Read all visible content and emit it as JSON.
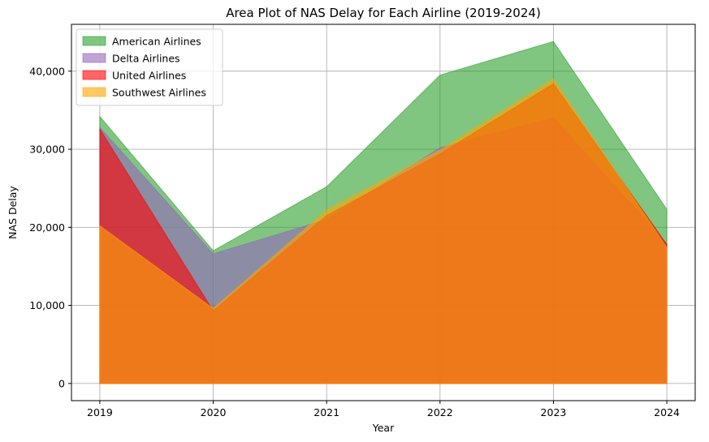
{
  "chart_data": {
    "type": "area",
    "title": "Area Plot of NAS Delay for Each Airline (2019-2024)",
    "xlabel": "Year",
    "ylabel": "NAS Delay",
    "x": [
      2019,
      2020,
      2021,
      2022,
      2023,
      2024
    ],
    "xlim": [
      2018.75,
      2024.25
    ],
    "ylim": [
      -2200,
      46000
    ],
    "yticks": [
      0,
      10000,
      20000,
      30000,
      40000
    ],
    "ytick_labels": [
      "0",
      "10,000",
      "20,000",
      "30,000",
      "40,000"
    ],
    "xtick_labels": [
      "2019",
      "2020",
      "2021",
      "2022",
      "2023",
      "2024"
    ],
    "grid": true,
    "legend_position": "top-left",
    "series": [
      {
        "name": "American Airlines",
        "values": [
          34200,
          17000,
          25200,
          39500,
          43800,
          22300
        ],
        "color": "#2ca02c"
      },
      {
        "name": "Delta Airlines",
        "values": [
          32800,
          16600,
          21000,
          30200,
          34000,
          17900
        ],
        "color": "#9467bd"
      },
      {
        "name": "United Airlines",
        "values": [
          32600,
          9300,
          21500,
          29400,
          38400,
          17800
        ],
        "color": "#ff0000"
      },
      {
        "name": "Southwest Airlines",
        "values": [
          20200,
          9600,
          22200,
          29900,
          39000,
          17400
        ],
        "color": "#ffa500"
      }
    ]
  }
}
